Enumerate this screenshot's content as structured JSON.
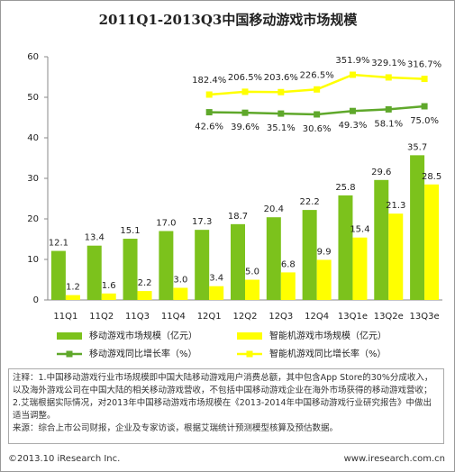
{
  "chart_data": {
    "type": "bar",
    "title": "2011Q1-2013Q3中国移动游戏市场规模",
    "categories": [
      "11Q1",
      "11Q2",
      "11Q3",
      "11Q4",
      "12Q1",
      "12Q2",
      "12Q3",
      "12Q4",
      "13Q1e",
      "13Q2e",
      "13Q3e"
    ],
    "ylim": [
      0,
      60
    ],
    "yticks": [
      0,
      10,
      20,
      30,
      40,
      50,
      60
    ],
    "legend": "bottom",
    "series": [
      {
        "name": "移动游戏市场规模（亿元）",
        "type": "bar",
        "color": "#7cc21c",
        "values": [
          12.1,
          13.4,
          15.1,
          17.0,
          17.3,
          18.7,
          20.4,
          22.2,
          25.8,
          29.6,
          35.7
        ],
        "value_labels": [
          "12.1",
          "13.4",
          "15.1",
          "17.0",
          "17.3",
          "18.7",
          "20.4",
          "22.2",
          "25.8",
          "29.6",
          "35.7"
        ]
      },
      {
        "name": "智能机游戏市场规模（亿元）",
        "type": "bar",
        "color": "#ffff00",
        "values": [
          1.2,
          1.6,
          2.2,
          3.0,
          3.4,
          5.0,
          6.8,
          9.9,
          15.4,
          21.3,
          28.5
        ],
        "value_labels": [
          "1.2",
          "1.6",
          "2.2",
          "3.0",
          "3.4",
          "5.0",
          "6.8",
          "9.9",
          "15.4",
          "21.3",
          "28.5"
        ]
      },
      {
        "name": "移动游戏同比增长率（%）",
        "type": "line",
        "color": "#5fa82b",
        "values": [
          null,
          null,
          null,
          null,
          42.6,
          39.6,
          35.1,
          30.6,
          49.3,
          58.1,
          75.0
        ],
        "value_labels": [
          null,
          null,
          null,
          null,
          "42.6%",
          "39.6%",
          "35.1%",
          "30.6%",
          "49.3%",
          "58.1%",
          "75.0%"
        ]
      },
      {
        "name": "智能机游戏同比增长率（%）",
        "type": "line",
        "color": "#ffff00",
        "values": [
          null,
          null,
          null,
          null,
          182.4,
          206.5,
          203.6,
          226.5,
          351.9,
          329.1,
          316.7
        ],
        "value_labels": [
          null,
          null,
          null,
          null,
          "182.4%",
          "206.5%",
          "203.6%",
          "226.5%",
          "351.9%",
          "329.1%",
          "316.7%"
        ]
      }
    ]
  },
  "notes": [
    "注释：1.中国移动游戏行业市场规模即中国大陆移动游戏用户消费总额，其中包含App Store的30%分成收入，以及海外游戏公司在中国大陆的相关移动游戏营收，不包括中国移动游戏企业在海外市场获得的移动游戏营收；2.艾瑞根据实际情况，对2013年中国移动游戏市场规模在《2013-2014年中国移动游戏行业研究报告》中做出适当调整。",
    "来源：综合上市公司财报，企业及专家访谈，根据艾瑞统计预测模型核算及预估数据。"
  ],
  "footer": {
    "left": "©2013.10 iResearch Inc.",
    "right": "www.iresearch.com.cn"
  }
}
